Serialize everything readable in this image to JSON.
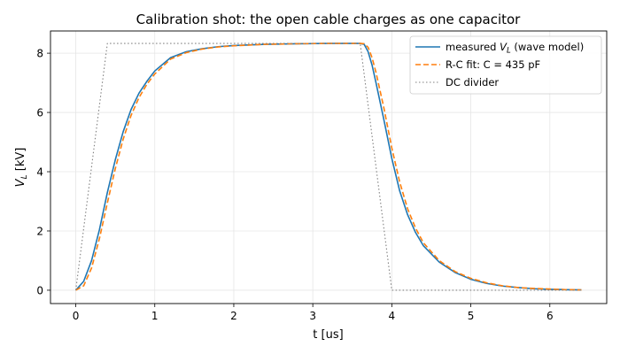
{
  "chart_data": {
    "type": "line",
    "title": "Calibration shot: the open cable charges as one capacitor",
    "xlabel": "t [us]",
    "ylabel": "V_L [kV]",
    "xlim": [
      -0.32,
      6.72
    ],
    "ylim": [
      -0.45,
      8.75
    ],
    "xticks": [
      0,
      1,
      2,
      3,
      4,
      5,
      6
    ],
    "yticks": [
      0,
      2,
      4,
      6,
      8
    ],
    "grid": true,
    "legend_position": "top-right",
    "series": [
      {
        "name": "measured V_L (wave model)",
        "color": "#1f77b4",
        "style": "solid",
        "x": [
          0,
          0.1,
          0.2,
          0.3,
          0.4,
          0.5,
          0.6,
          0.7,
          0.8,
          0.9,
          1.0,
          1.2,
          1.4,
          1.6,
          1.8,
          2.0,
          2.4,
          2.8,
          3.2,
          3.6,
          3.65,
          3.7,
          3.75,
          3.8,
          3.9,
          4.0,
          4.1,
          4.2,
          4.3,
          4.4,
          4.6,
          4.8,
          5.0,
          5.2,
          5.4,
          5.6,
          5.8,
          6.0,
          6.2,
          6.4
        ],
        "y": [
          0,
          0.3,
          1.0,
          2.05,
          3.3,
          4.4,
          5.35,
          6.1,
          6.65,
          7.05,
          7.4,
          7.85,
          8.05,
          8.15,
          8.22,
          8.26,
          8.3,
          8.32,
          8.33,
          8.33,
          8.3,
          8.05,
          7.6,
          7.0,
          5.75,
          4.45,
          3.35,
          2.55,
          1.95,
          1.5,
          0.95,
          0.6,
          0.37,
          0.23,
          0.14,
          0.09,
          0.05,
          0.03,
          0.02,
          0.01
        ]
      },
      {
        "name": "R-C fit: C = 435 pF",
        "color": "#ff7f0e",
        "style": "dashed",
        "x": [
          0,
          0.1,
          0.2,
          0.3,
          0.4,
          0.5,
          0.6,
          0.7,
          0.8,
          0.9,
          1.0,
          1.2,
          1.4,
          1.6,
          1.8,
          2.0,
          2.4,
          2.8,
          3.2,
          3.6,
          3.65,
          3.7,
          3.75,
          3.8,
          3.9,
          4.0,
          4.1,
          4.2,
          4.3,
          4.4,
          4.6,
          4.8,
          5.0,
          5.2,
          5.4,
          5.6,
          5.8,
          6.0,
          6.2,
          6.4
        ],
        "y": [
          0,
          0.15,
          0.75,
          1.75,
          2.95,
          4.1,
          5.1,
          5.9,
          6.5,
          6.95,
          7.3,
          7.8,
          8.02,
          8.14,
          8.21,
          8.25,
          8.3,
          8.32,
          8.33,
          8.33,
          8.32,
          8.2,
          7.85,
          7.35,
          6.15,
          4.8,
          3.65,
          2.75,
          2.1,
          1.6,
          1.0,
          0.63,
          0.4,
          0.25,
          0.15,
          0.09,
          0.06,
          0.04,
          0.02,
          0.01
        ]
      },
      {
        "name": "DC divider",
        "color": "#808080",
        "style": "dotted",
        "x": [
          0,
          0.4,
          3.6,
          4.0,
          6.4
        ],
        "y": [
          0,
          8.33,
          8.33,
          0,
          0
        ]
      }
    ]
  }
}
